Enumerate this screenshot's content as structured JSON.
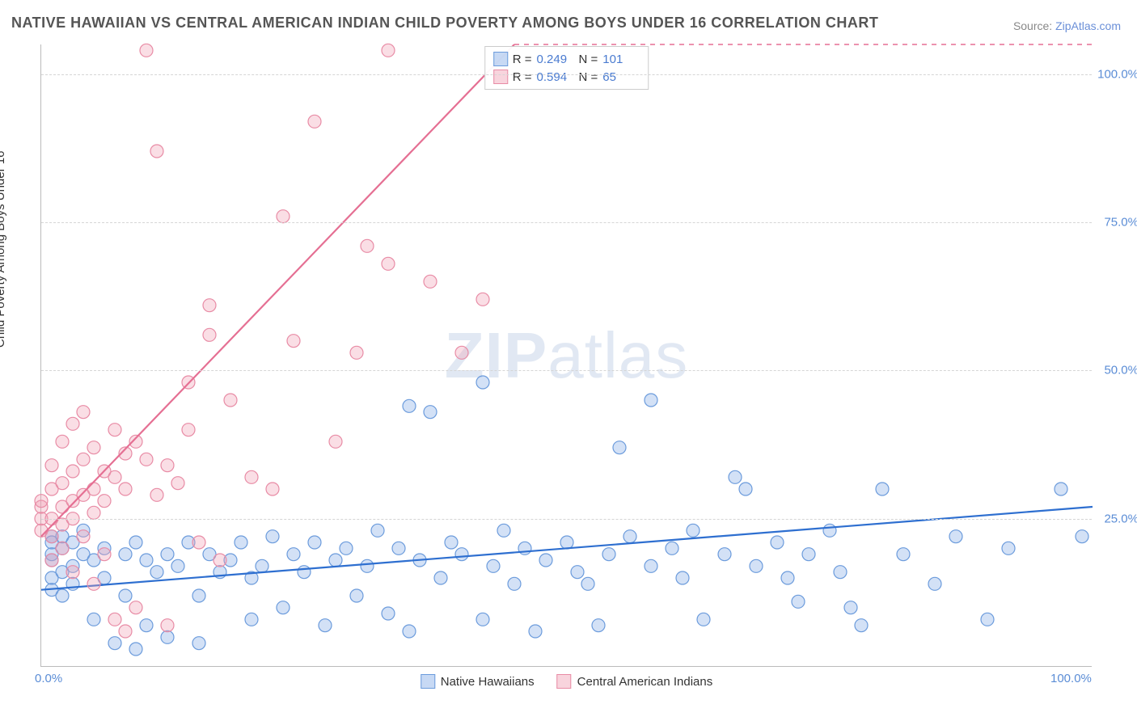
{
  "title": "NATIVE HAWAIIAN VS CENTRAL AMERICAN INDIAN CHILD POVERTY AMONG BOYS UNDER 16 CORRELATION CHART",
  "source_prefix": "Source: ",
  "source_link": "ZipAtlas.com",
  "ylabel": "Child Poverty Among Boys Under 16",
  "watermark_bold": "ZIP",
  "watermark_light": "atlas",
  "chart": {
    "type": "scatter",
    "background_color": "#ffffff",
    "grid_color": "#d5d5d5",
    "axis_color": "#bbbbbb",
    "text_color": "#555555",
    "tick_color": "#5b8dd6",
    "title_fontsize": 18,
    "label_fontsize": 15,
    "tick_fontsize": 15,
    "xlim": [
      0,
      100
    ],
    "ylim": [
      0,
      105
    ],
    "xticks": [
      {
        "v": 0,
        "label": "0.0%"
      },
      {
        "v": 100,
        "label": "100.0%"
      }
    ],
    "yticks": [
      {
        "v": 25,
        "label": "25.0%"
      },
      {
        "v": 50,
        "label": "50.0%"
      },
      {
        "v": 75,
        "label": "75.0%"
      },
      {
        "v": 100,
        "label": "100.0%"
      }
    ],
    "marker_radius": 8,
    "marker_stroke_width": 1.2,
    "line_width": 2.2,
    "series": [
      {
        "name": "Native Hawaiians",
        "fill": "rgba(130,170,230,0.35)",
        "stroke": "#6b9bdc",
        "legend_fill": "rgba(130,170,230,0.45)",
        "legend_stroke": "#6b9bdc",
        "R": "0.249",
        "N": "101",
        "trend": {
          "x1": 0,
          "y1": 13,
          "x2": 100,
          "y2": 27,
          "color": "#2e6fd0",
          "dash": "none"
        },
        "points": [
          [
            1,
            18
          ],
          [
            1,
            22
          ],
          [
            1,
            15
          ],
          [
            1,
            19
          ],
          [
            1,
            13
          ],
          [
            1,
            21
          ],
          [
            2,
            20
          ],
          [
            2,
            16
          ],
          [
            2,
            12
          ],
          [
            2,
            22
          ],
          [
            3,
            21
          ],
          [
            3,
            17
          ],
          [
            3,
            14
          ],
          [
            4,
            19
          ],
          [
            4,
            23
          ],
          [
            5,
            18
          ],
          [
            5,
            8
          ],
          [
            6,
            20
          ],
          [
            6,
            15
          ],
          [
            7,
            4
          ],
          [
            8,
            19
          ],
          [
            8,
            12
          ],
          [
            9,
            21
          ],
          [
            9,
            3
          ],
          [
            10,
            18
          ],
          [
            10,
            7
          ],
          [
            11,
            16
          ],
          [
            12,
            19
          ],
          [
            12,
            5
          ],
          [
            13,
            17
          ],
          [
            14,
            21
          ],
          [
            15,
            12
          ],
          [
            15,
            4
          ],
          [
            16,
            19
          ],
          [
            17,
            16
          ],
          [
            18,
            18
          ],
          [
            19,
            21
          ],
          [
            20,
            8
          ],
          [
            20,
            15
          ],
          [
            21,
            17
          ],
          [
            22,
            22
          ],
          [
            23,
            10
          ],
          [
            24,
            19
          ],
          [
            25,
            16
          ],
          [
            26,
            21
          ],
          [
            27,
            7
          ],
          [
            28,
            18
          ],
          [
            29,
            20
          ],
          [
            30,
            12
          ],
          [
            31,
            17
          ],
          [
            32,
            23
          ],
          [
            33,
            9
          ],
          [
            34,
            20
          ],
          [
            35,
            44
          ],
          [
            35,
            6
          ],
          [
            36,
            18
          ],
          [
            37,
            43
          ],
          [
            38,
            15
          ],
          [
            39,
            21
          ],
          [
            40,
            19
          ],
          [
            42,
            48
          ],
          [
            42,
            8
          ],
          [
            43,
            17
          ],
          [
            44,
            23
          ],
          [
            45,
            14
          ],
          [
            46,
            20
          ],
          [
            47,
            6
          ],
          [
            48,
            18
          ],
          [
            50,
            21
          ],
          [
            51,
            16
          ],
          [
            52,
            14
          ],
          [
            53,
            7
          ],
          [
            54,
            19
          ],
          [
            55,
            37
          ],
          [
            56,
            22
          ],
          [
            58,
            45
          ],
          [
            58,
            17
          ],
          [
            60,
            20
          ],
          [
            61,
            15
          ],
          [
            62,
            23
          ],
          [
            63,
            8
          ],
          [
            65,
            19
          ],
          [
            66,
            32
          ],
          [
            67,
            30
          ],
          [
            68,
            17
          ],
          [
            70,
            21
          ],
          [
            71,
            15
          ],
          [
            72,
            11
          ],
          [
            73,
            19
          ],
          [
            75,
            23
          ],
          [
            76,
            16
          ],
          [
            77,
            10
          ],
          [
            78,
            7
          ],
          [
            80,
            30
          ],
          [
            82,
            19
          ],
          [
            85,
            14
          ],
          [
            87,
            22
          ],
          [
            90,
            8
          ],
          [
            92,
            20
          ],
          [
            97,
            30
          ],
          [
            99,
            22
          ]
        ]
      },
      {
        "name": "Central American Indians",
        "fill": "rgba(240,160,180,0.35)",
        "stroke": "#e88ba5",
        "legend_fill": "rgba(240,160,180,0.45)",
        "legend_stroke": "#e88ba5",
        "R": "0.594",
        "N": "65",
        "trend": {
          "x1": 0,
          "y1": 22,
          "x2": 45,
          "y2": 105,
          "color": "#e56f93",
          "dash": "none",
          "extend_dash_to": 100,
          "extend_dash_y": 105
        },
        "points": [
          [
            0,
            25
          ],
          [
            0,
            27
          ],
          [
            0,
            23
          ],
          [
            0,
            28
          ],
          [
            1,
            25
          ],
          [
            1,
            30
          ],
          [
            1,
            22
          ],
          [
            1,
            34
          ],
          [
            1,
            18
          ],
          [
            2,
            27
          ],
          [
            2,
            31
          ],
          [
            2,
            24
          ],
          [
            2,
            38
          ],
          [
            2,
            20
          ],
          [
            3,
            28
          ],
          [
            3,
            33
          ],
          [
            3,
            25
          ],
          [
            3,
            41
          ],
          [
            3,
            16
          ],
          [
            4,
            29
          ],
          [
            4,
            35
          ],
          [
            4,
            43
          ],
          [
            4,
            22
          ],
          [
            5,
            30
          ],
          [
            5,
            37
          ],
          [
            5,
            26
          ],
          [
            5,
            14
          ],
          [
            6,
            33
          ],
          [
            6,
            28
          ],
          [
            6,
            19
          ],
          [
            7,
            32
          ],
          [
            7,
            40
          ],
          [
            7,
            8
          ],
          [
            8,
            36
          ],
          [
            8,
            30
          ],
          [
            8,
            6
          ],
          [
            9,
            38
          ],
          [
            9,
            10
          ],
          [
            10,
            35
          ],
          [
            10,
            104
          ],
          [
            11,
            29
          ],
          [
            11,
            87
          ],
          [
            12,
            34
          ],
          [
            12,
            7
          ],
          [
            13,
            31
          ],
          [
            14,
            48
          ],
          [
            14,
            40
          ],
          [
            15,
            21
          ],
          [
            16,
            56
          ],
          [
            16,
            61
          ],
          [
            17,
            18
          ],
          [
            18,
            45
          ],
          [
            20,
            32
          ],
          [
            22,
            30
          ],
          [
            23,
            76
          ],
          [
            24,
            55
          ],
          [
            26,
            92
          ],
          [
            28,
            38
          ],
          [
            30,
            53
          ],
          [
            31,
            71
          ],
          [
            33,
            68
          ],
          [
            33,
            104
          ],
          [
            37,
            65
          ],
          [
            40,
            53
          ],
          [
            42,
            62
          ]
        ]
      }
    ],
    "stats_labels": {
      "R": "R =",
      "N": "N ="
    }
  },
  "legend": {
    "items": [
      {
        "label": "Native Hawaiians",
        "fill": "rgba(130,170,230,0.45)",
        "stroke": "#6b9bdc"
      },
      {
        "label": "Central American Indians",
        "fill": "rgba(240,160,180,0.45)",
        "stroke": "#e88ba5"
      }
    ]
  }
}
